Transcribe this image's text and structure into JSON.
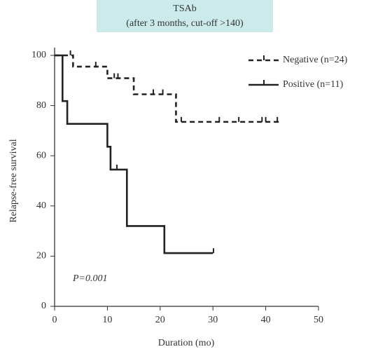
{
  "chart_data": {
    "type": "step",
    "title": "TSAb",
    "subtitle": "(after 3 months, cut-off >140)",
    "xlabel": "Duration (mo)",
    "ylabel": "Relapse-free survival",
    "annotation": "P=0.001",
    "xlim": [
      0,
      50
    ],
    "ylim": [
      0,
      100
    ],
    "xticks": [
      0,
      10,
      20,
      30,
      40,
      50
    ],
    "yticks": [
      0,
      20,
      40,
      60,
      80,
      100
    ],
    "series": [
      {
        "name": "Negative (n=24)",
        "color": "#222222",
        "dash": true,
        "x": [
          0,
          3.5,
          10,
          15,
          23,
          42.5
        ],
        "values": [
          100,
          95.5,
          90.9,
          84.5,
          73.5,
          73.5
        ],
        "censored_x": [
          3,
          7.8,
          11.3,
          12,
          18.7,
          20.5,
          24,
          31.2,
          34.9,
          39.3,
          40,
          42.2
        ]
      },
      {
        "name": "Positive (n=11)",
        "color": "#222222",
        "dash": false,
        "x": [
          0,
          1.5,
          2.4,
          10,
          10.6,
          13.7,
          20.8,
          30
        ],
        "values": [
          100,
          81.8,
          72.7,
          63.6,
          54.5,
          32,
          21.2,
          21.2
        ],
        "censored_x": [
          11.8,
          30.1
        ]
      }
    ]
  }
}
